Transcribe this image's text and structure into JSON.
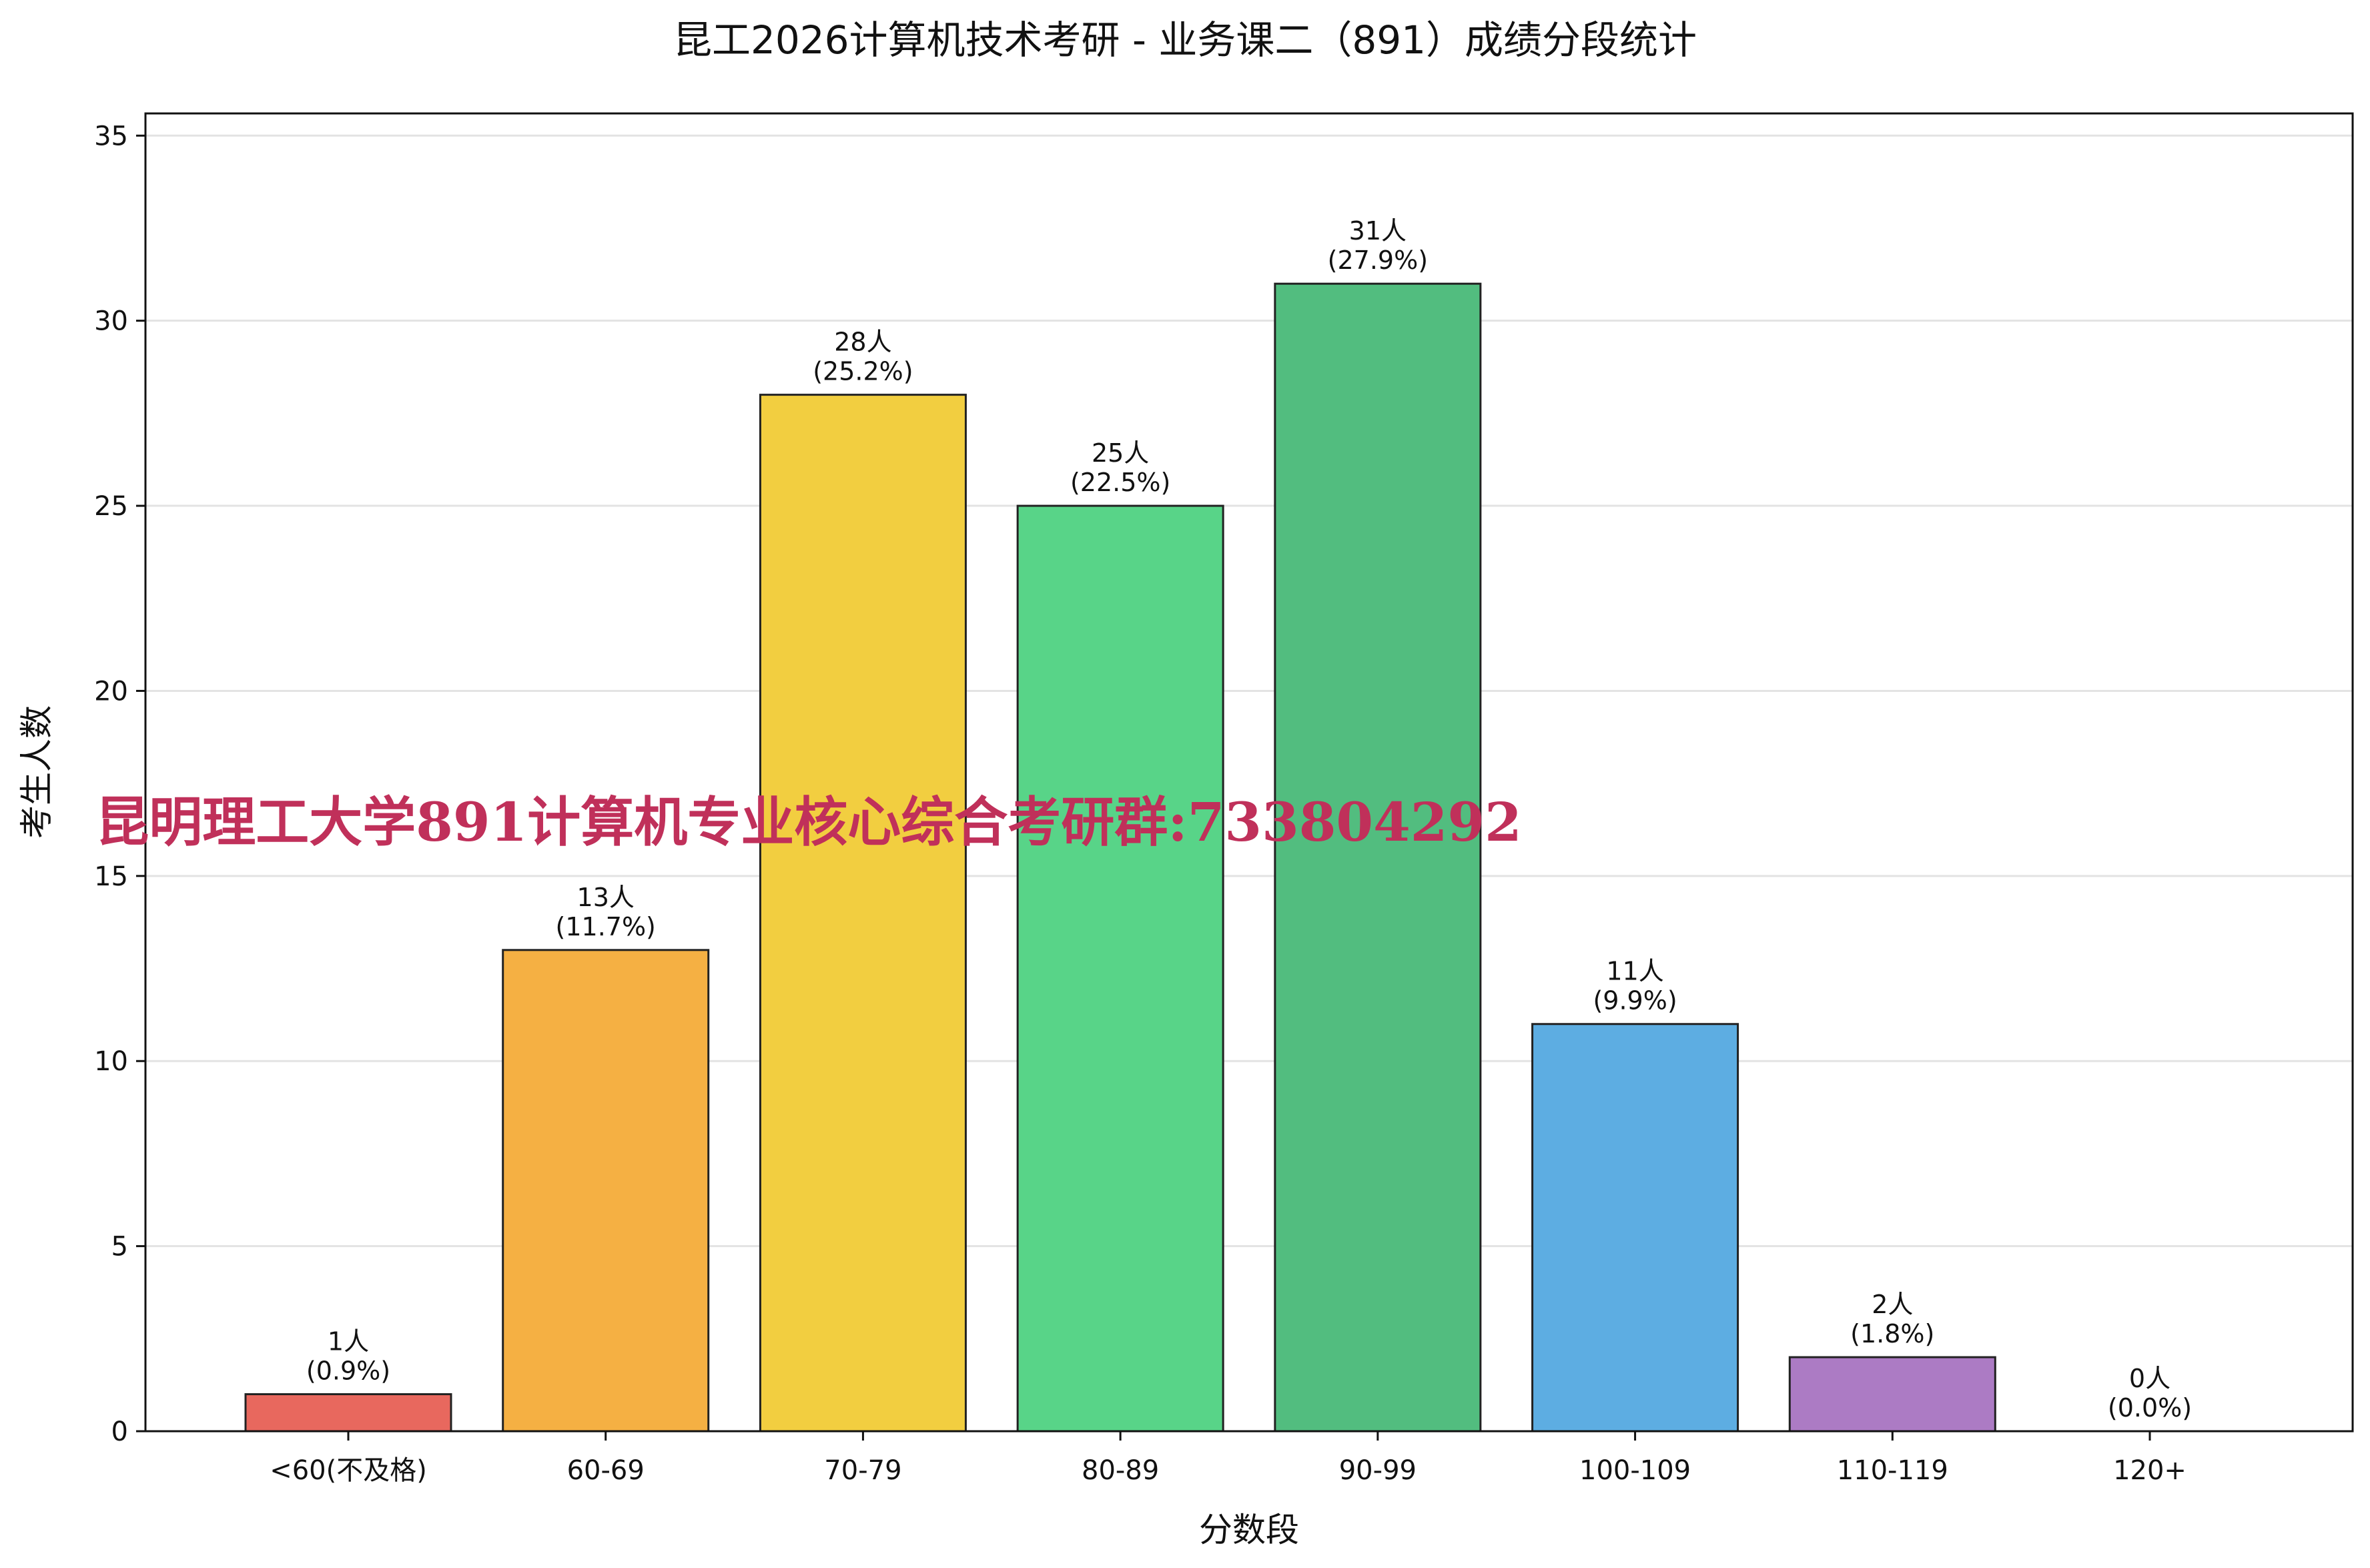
{
  "chart_data": {
    "type": "bar",
    "title": "昆工2026计算机技术考研 - 业务课二（891）成绩分段统计",
    "xlabel": "分数段",
    "ylabel": "考生人数",
    "categories": [
      "<60(不及格)",
      "60-69",
      "70-79",
      "80-89",
      "90-99",
      "100-109",
      "110-119",
      "120+"
    ],
    "values": [
      1,
      13,
      28,
      25,
      31,
      11,
      2,
      0
    ],
    "count_labels": [
      "1人",
      "13人",
      "28人",
      "25人",
      "31人",
      "11人",
      "2人",
      "0人"
    ],
    "percent_labels": [
      "(0.9%)",
      "(11.7%)",
      "(25.2%)",
      "(22.5%)",
      "(27.9%)",
      "(9.9%)",
      "(1.8%)",
      "(0.0%)"
    ],
    "colors": [
      "#e8685e",
      "#f5b043",
      "#f2ce40",
      "#58d488",
      "#52bd7f",
      "#5dade2",
      "#ac7bc4",
      "#9aa1a8"
    ],
    "ylim": [
      0,
      35.6
    ],
    "yticks": [
      "0",
      "5",
      "10",
      "15",
      "20",
      "25",
      "30",
      "35"
    ],
    "grid": "horizontal",
    "legend": "none"
  },
  "watermark": "昆明理工大学891计算机专业核心综合考研群:733804292"
}
